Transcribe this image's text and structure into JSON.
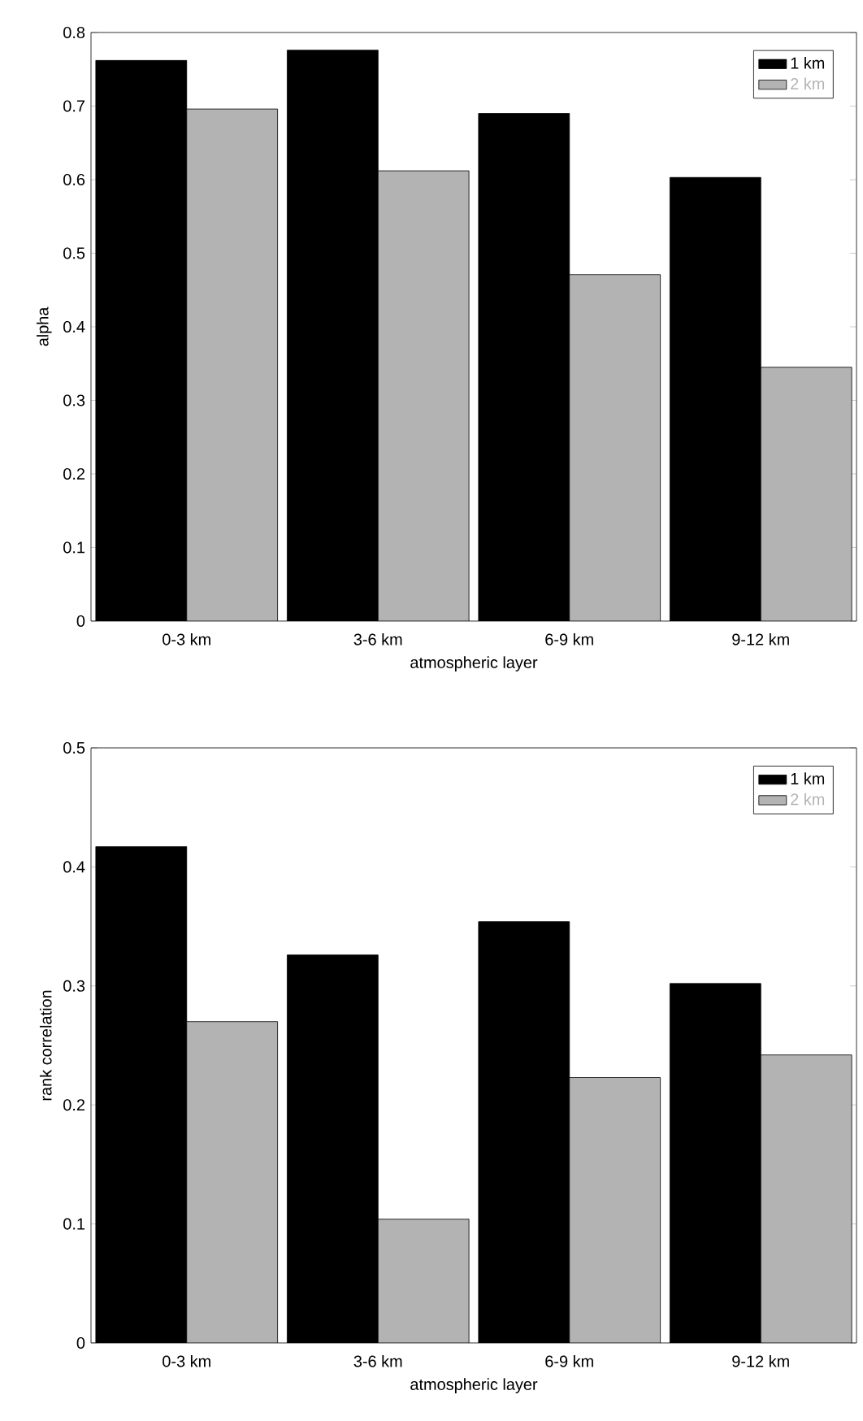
{
  "chart_data": [
    {
      "type": "bar",
      "xlabel": "atmospheric layer",
      "ylabel": "alpha",
      "categories": [
        "0-3 km",
        "3-6 km",
        "6-9 km",
        "9-12 km"
      ],
      "series": [
        {
          "name": "1 km",
          "color": "#000000",
          "values": [
            0.762,
            0.776,
            0.69,
            0.603
          ]
        },
        {
          "name": "2 km",
          "color": "#b3b3b3",
          "values": [
            0.696,
            0.612,
            0.471,
            0.345
          ]
        }
      ],
      "ylim": [
        0,
        0.8
      ],
      "yticks": [
        0,
        0.1,
        0.2,
        0.3,
        0.4,
        0.5,
        0.6,
        0.7,
        0.8
      ],
      "legend": "top right"
    },
    {
      "type": "bar",
      "xlabel": "atmospheric layer",
      "ylabel": "rank correlation",
      "categories": [
        "0-3 km",
        "3-6 km",
        "6-9 km",
        "9-12 km"
      ],
      "series": [
        {
          "name": "1 km",
          "color": "#000000",
          "values": [
            0.417,
            0.326,
            0.354,
            0.302
          ]
        },
        {
          "name": "2 km",
          "color": "#b3b3b3",
          "values": [
            0.27,
            0.104,
            0.223,
            0.242
          ]
        }
      ],
      "ylim": [
        0,
        0.5
      ],
      "yticks": [
        0,
        0.1,
        0.2,
        0.3,
        0.4,
        0.5
      ],
      "legend": "top right"
    }
  ]
}
